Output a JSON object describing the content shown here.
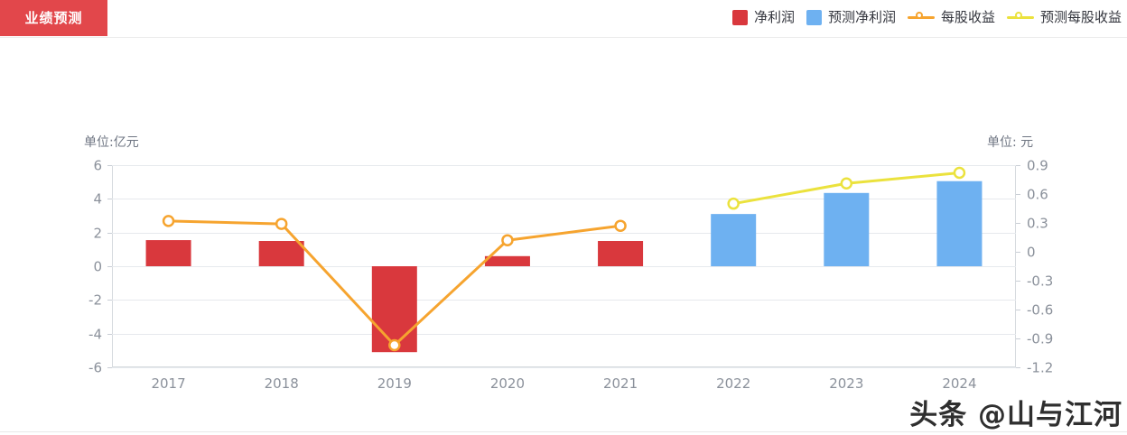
{
  "header": {
    "tab_label": "业绩预测"
  },
  "legend": {
    "items": [
      {
        "key": "net-profit",
        "label": "净利润",
        "type": "bar",
        "color": "#d9383d"
      },
      {
        "key": "forecast-net-profit",
        "label": "预测净利润",
        "type": "bar",
        "color": "#6eb1f1"
      },
      {
        "key": "eps",
        "label": "每股收益",
        "type": "line",
        "color": "#f6a42f"
      },
      {
        "key": "forecast-eps",
        "label": "预测每股收益",
        "type": "line",
        "color": "#ebe23d"
      }
    ]
  },
  "chart_data": {
    "type": "bar",
    "subtype": "dual-axis bar+line forecast chart",
    "categories": [
      "2017",
      "2018",
      "2019",
      "2020",
      "2021",
      "2022",
      "2023",
      "2024"
    ],
    "series": [
      {
        "key": "net-profit",
        "name": "净利润",
        "type": "bar",
        "axis": "left",
        "color": "#d9383d",
        "values": [
          1.55,
          1.5,
          -5.1,
          0.6,
          1.5,
          null,
          null,
          null
        ]
      },
      {
        "key": "forecast-net-profit",
        "name": "预测净利润",
        "type": "bar",
        "axis": "left",
        "color": "#6eb1f1",
        "values": [
          null,
          null,
          null,
          null,
          null,
          3.1,
          4.35,
          5.05
        ]
      },
      {
        "key": "eps",
        "name": "每股收益",
        "type": "line",
        "axis": "right",
        "color": "#f6a42f",
        "values": [
          0.32,
          0.29,
          -0.97,
          0.12,
          0.27,
          null,
          null,
          null
        ]
      },
      {
        "key": "forecast-eps",
        "name": "预测每股收益",
        "type": "line",
        "axis": "right",
        "color": "#ebe23d",
        "values": [
          null,
          null,
          null,
          null,
          null,
          0.5,
          0.71,
          0.82
        ]
      }
    ],
    "left_axis": {
      "unit_label": "单位:亿元",
      "min": -6,
      "max": 6,
      "ticks": [
        6,
        4,
        2,
        0,
        -2,
        -4,
        -6
      ]
    },
    "right_axis": {
      "unit_label": "单位: 元",
      "min": -1.2,
      "max": 0.9,
      "ticks": [
        0.9,
        0.6,
        0.3,
        0,
        -0.3,
        -0.6,
        -0.9,
        -1.2
      ]
    },
    "grid": true,
    "legend_position": "top-right"
  },
  "watermark": {
    "text": "头条 @山与江河"
  }
}
